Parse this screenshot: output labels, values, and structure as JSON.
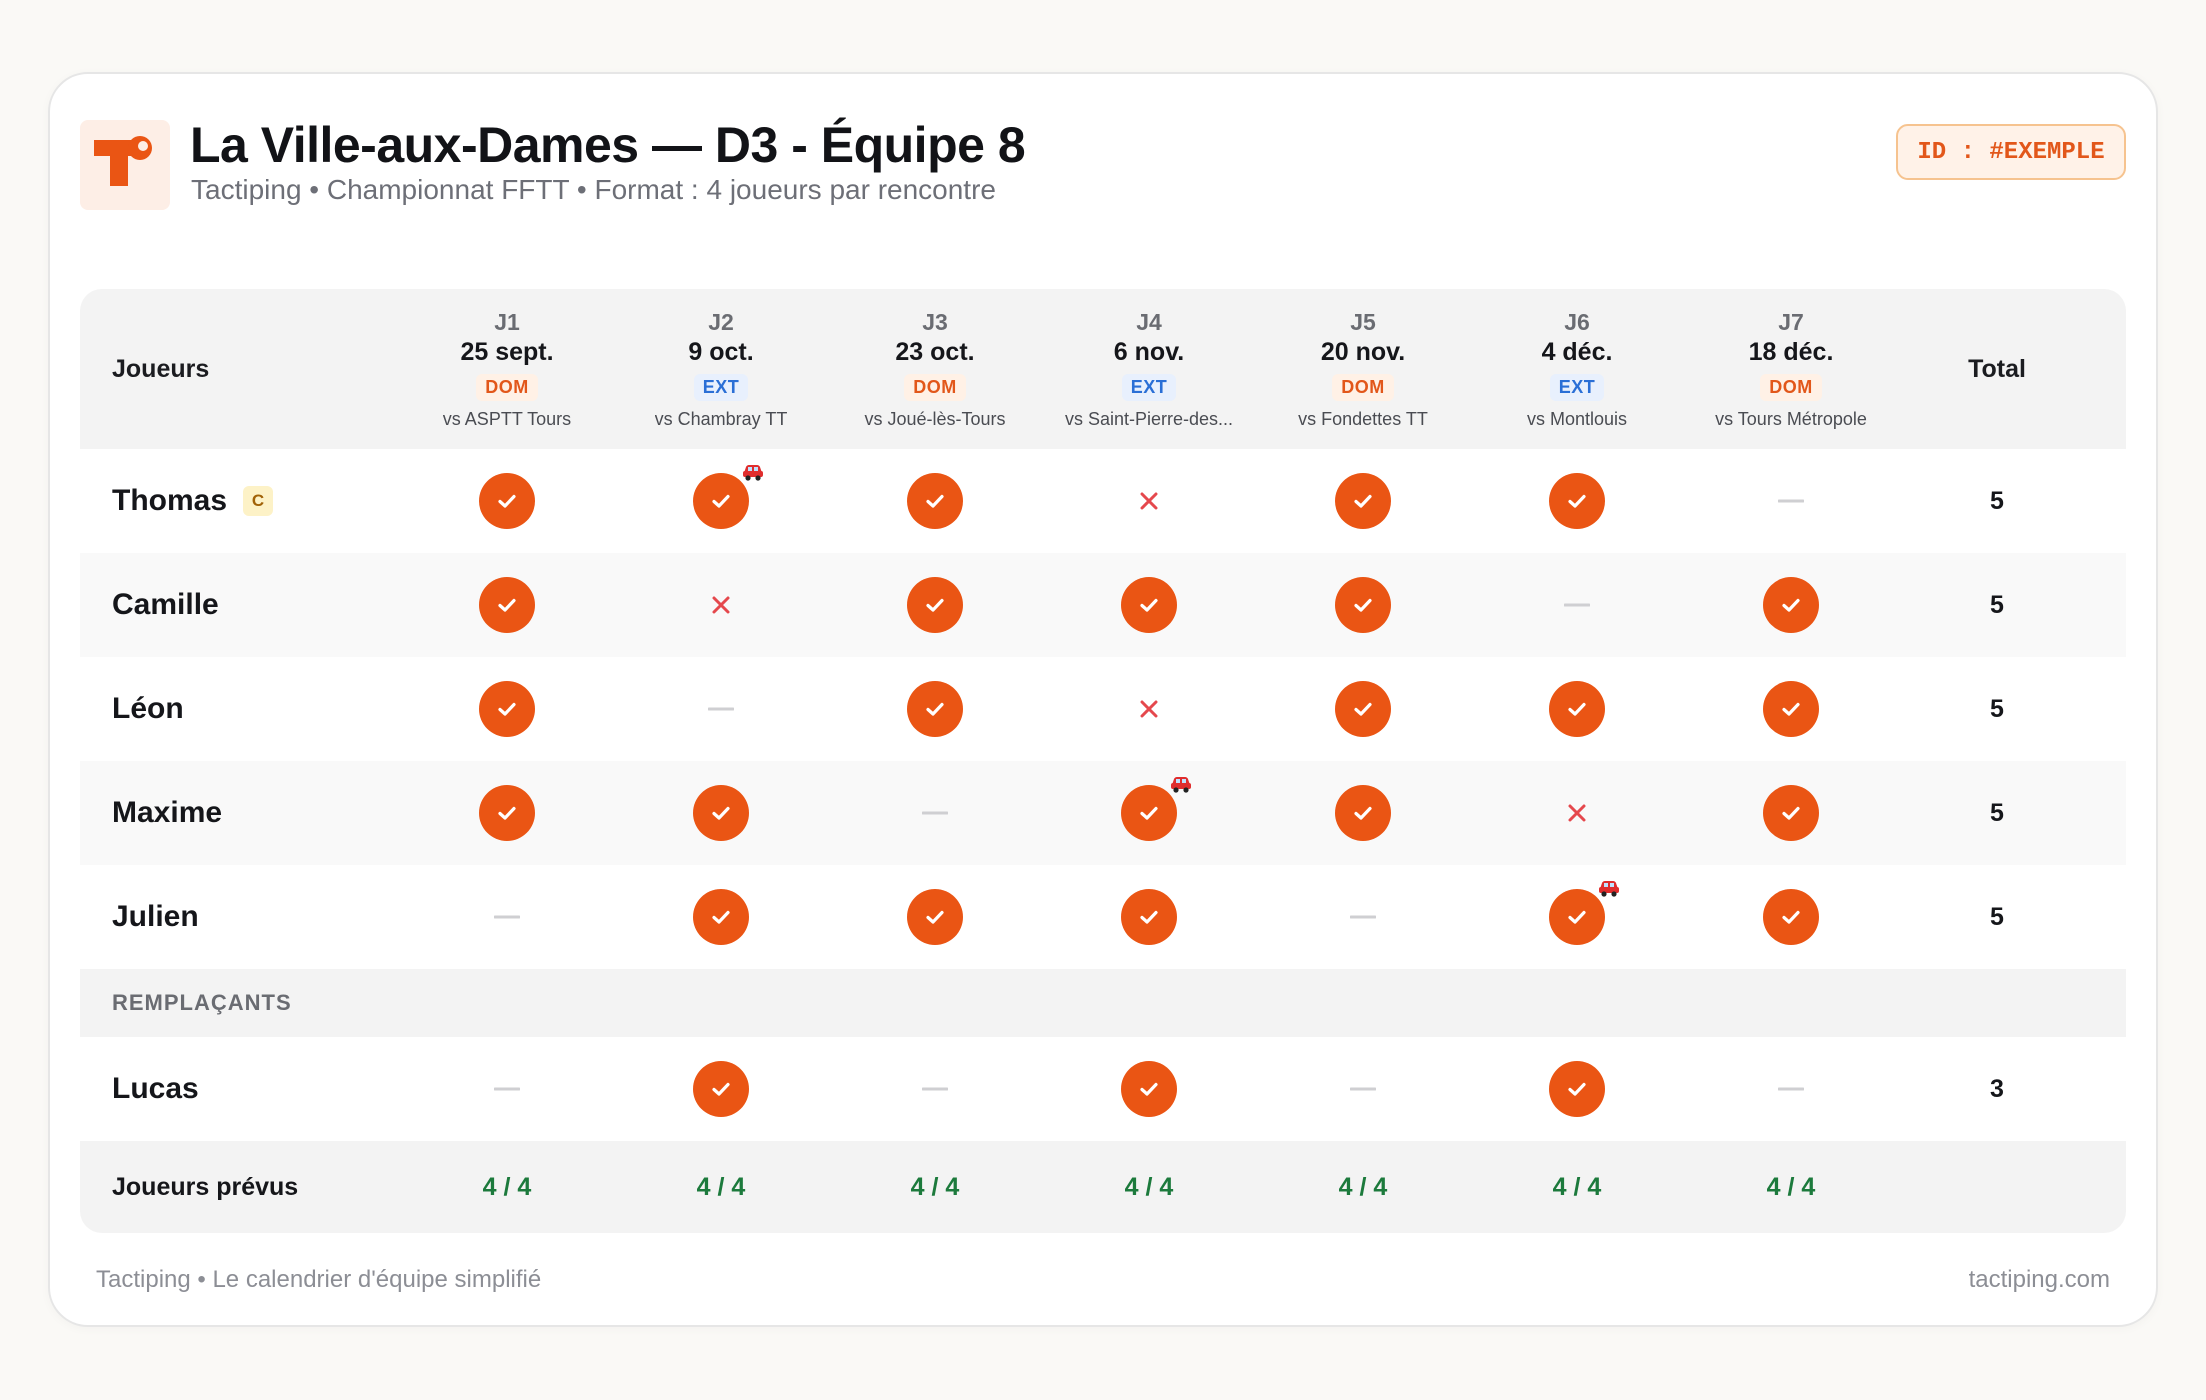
{
  "header": {
    "title": "La Ville-aux-Dames — D3 - Équipe 8",
    "subtitle": "Tactiping • Championnat FFTT • Format : 4 joueurs par rencontre",
    "id_badge": "ID : #EXEMPLE"
  },
  "table": {
    "players_header": "Joueurs",
    "total_header": "Total",
    "matches": [
      {
        "label": "J1",
        "date": "25 sept.",
        "location": "DOM",
        "opponent": "vs ASPTT Tours"
      },
      {
        "label": "J2",
        "date": "9 oct.",
        "location": "EXT",
        "opponent": "vs Chambray TT"
      },
      {
        "label": "J3",
        "date": "23 oct.",
        "location": "DOM",
        "opponent": "vs Joué-lès-Tours"
      },
      {
        "label": "J4",
        "date": "6 nov.",
        "location": "EXT",
        "opponent": "vs Saint-Pierre-des..."
      },
      {
        "label": "J5",
        "date": "20 nov.",
        "location": "DOM",
        "opponent": "vs Fondettes TT"
      },
      {
        "label": "J6",
        "date": "4 déc.",
        "location": "EXT",
        "opponent": "vs Montlouis"
      },
      {
        "label": "J7",
        "date": "18 déc.",
        "location": "DOM",
        "opponent": "vs Tours Métropole"
      }
    ],
    "players": [
      {
        "name": "Thomas",
        "badge": "C",
        "status": [
          "yes",
          "yes-car",
          "yes",
          "no",
          "yes",
          "yes",
          "none"
        ],
        "total": "5"
      },
      {
        "name": "Camille",
        "badge": "",
        "status": [
          "yes",
          "no",
          "yes",
          "yes",
          "yes",
          "none",
          "yes"
        ],
        "total": "5"
      },
      {
        "name": "Léon",
        "badge": "",
        "status": [
          "yes",
          "none",
          "yes",
          "no",
          "yes",
          "yes",
          "yes"
        ],
        "total": "5"
      },
      {
        "name": "Maxime",
        "badge": "",
        "status": [
          "yes",
          "yes",
          "none",
          "yes-car",
          "yes",
          "no",
          "yes"
        ],
        "total": "5"
      },
      {
        "name": "Julien",
        "badge": "",
        "status": [
          "none",
          "yes",
          "yes",
          "yes",
          "none",
          "yes-car",
          "yes"
        ],
        "total": "5"
      }
    ],
    "substitutes_header": "REMPLAÇANTS",
    "substitutes": [
      {
        "name": "Lucas",
        "badge": "",
        "status": [
          "none",
          "yes",
          "none",
          "yes",
          "none",
          "yes",
          "none"
        ],
        "total": "3"
      }
    ],
    "planned_label": "Joueurs prévus",
    "planned": [
      "4 / 4",
      "4 / 4",
      "4 / 4",
      "4 / 4",
      "4 / 4",
      "4 / 4",
      "4 / 4"
    ]
  },
  "footer": {
    "left": "Tactiping • Le calendrier d'équipe simplifié",
    "right": "tactiping.com"
  },
  "colors": {
    "accent": "#ea5514",
    "home": "#e2571a",
    "away": "#2a6fd6",
    "absent": "#e5484d",
    "complete": "#1c7a3c"
  },
  "icons": {
    "available": "check-circle-icon",
    "absent": "x-icon",
    "no_response": "dash-icon",
    "driver": "car-icon"
  }
}
